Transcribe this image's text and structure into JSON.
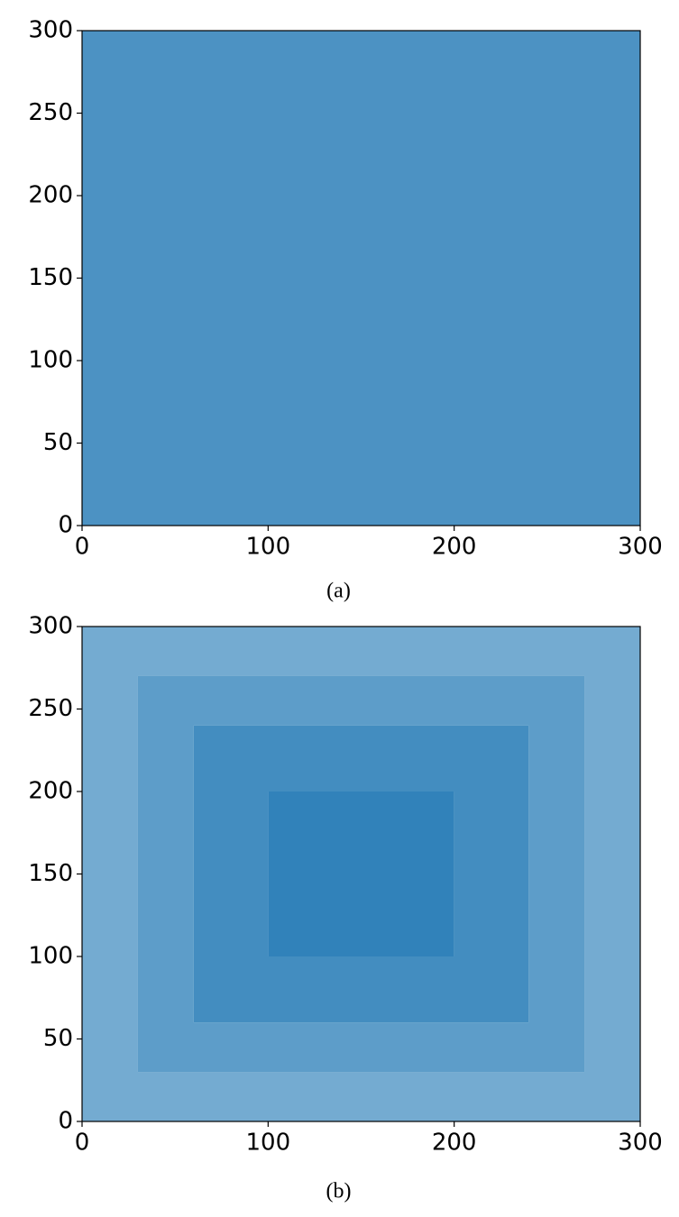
{
  "chart_data": [
    {
      "type": "density",
      "caption": "(a)",
      "color": "#1f77b4",
      "xlim": [
        0,
        300
      ],
      "ylim": [
        0,
        300
      ],
      "xticks": [
        0,
        100,
        200,
        300
      ],
      "yticks": [
        0,
        50,
        100,
        150,
        200,
        250,
        300
      ],
      "regions": [
        {
          "x": [
            0,
            300
          ],
          "y": [
            0,
            300
          ],
          "density": 0.8
        }
      ]
    },
    {
      "type": "density",
      "caption": "(b)",
      "color": "#1f77b4",
      "xlim": [
        0,
        300
      ],
      "ylim": [
        0,
        300
      ],
      "xticks": [
        0,
        100,
        200,
        300
      ],
      "yticks": [
        0,
        50,
        100,
        150,
        200,
        250,
        300
      ],
      "regions": [
        {
          "x": [
            0,
            300
          ],
          "y": [
            0,
            300
          ],
          "density": 0.62
        },
        {
          "x": [
            30,
            270
          ],
          "y": [
            30,
            270
          ],
          "density": 0.72
        },
        {
          "x": [
            60,
            240
          ],
          "y": [
            60,
            240
          ],
          "density": 0.84
        },
        {
          "x": [
            100,
            200
          ],
          "y": [
            100,
            200
          ],
          "density": 0.92
        }
      ]
    }
  ]
}
